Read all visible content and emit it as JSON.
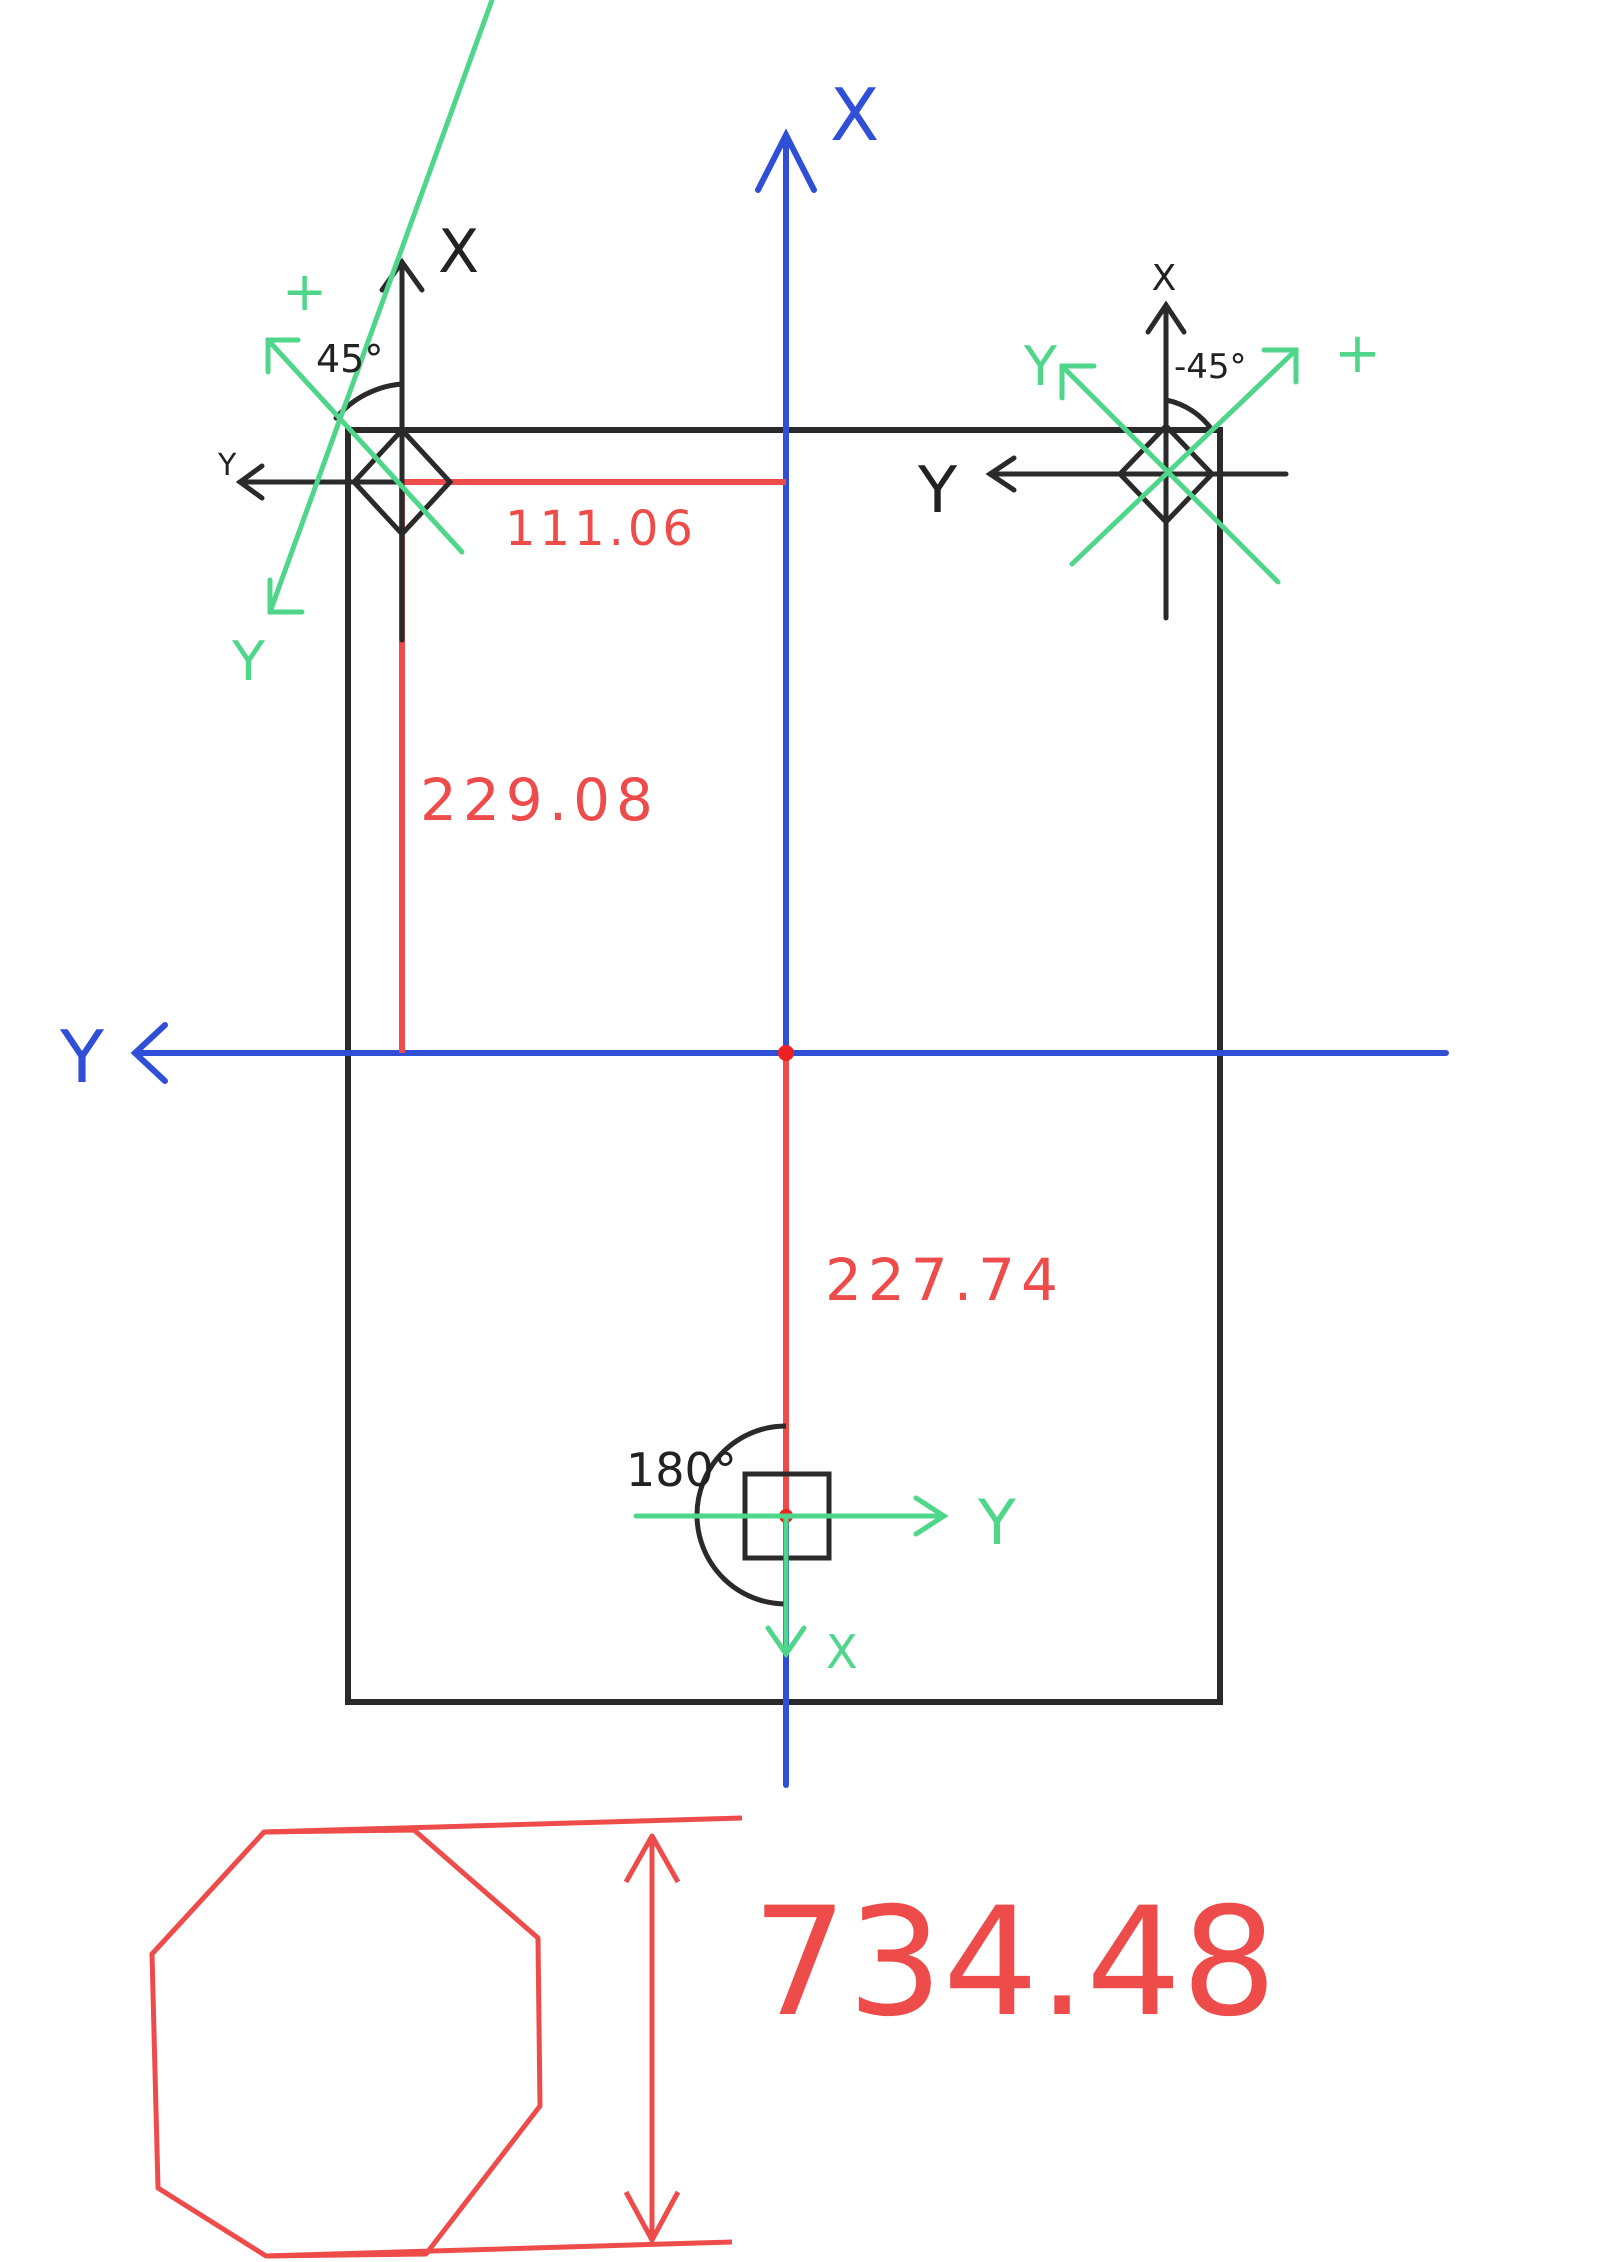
{
  "colors": {
    "frame": "#2a2a2a",
    "global_axis": "#2f4fd6",
    "local_axis": "#4fd68a",
    "dimension": "#ee4b4b"
  },
  "global_axes": {
    "x_label": "X",
    "y_label": "Y"
  },
  "markers": {
    "top_left": {
      "black_x_label": "X",
      "black_y_label": "Y",
      "green_x_label": "+",
      "green_y_label": "Y",
      "angle_label": "45°"
    },
    "top_right": {
      "black_x_label": "X",
      "black_y_label": "Y",
      "green_x_label": "+",
      "green_y_label": "Y",
      "angle_label": "-45°"
    },
    "bottom": {
      "green_y_label": "Y",
      "green_x_label": "X",
      "angle_label": "180°"
    }
  },
  "dimensions": {
    "horizontal_offset": "111.06",
    "vertical_offset_top": "229.08",
    "vertical_offset_bottom": "227.74",
    "octagon_width": "734.48"
  }
}
